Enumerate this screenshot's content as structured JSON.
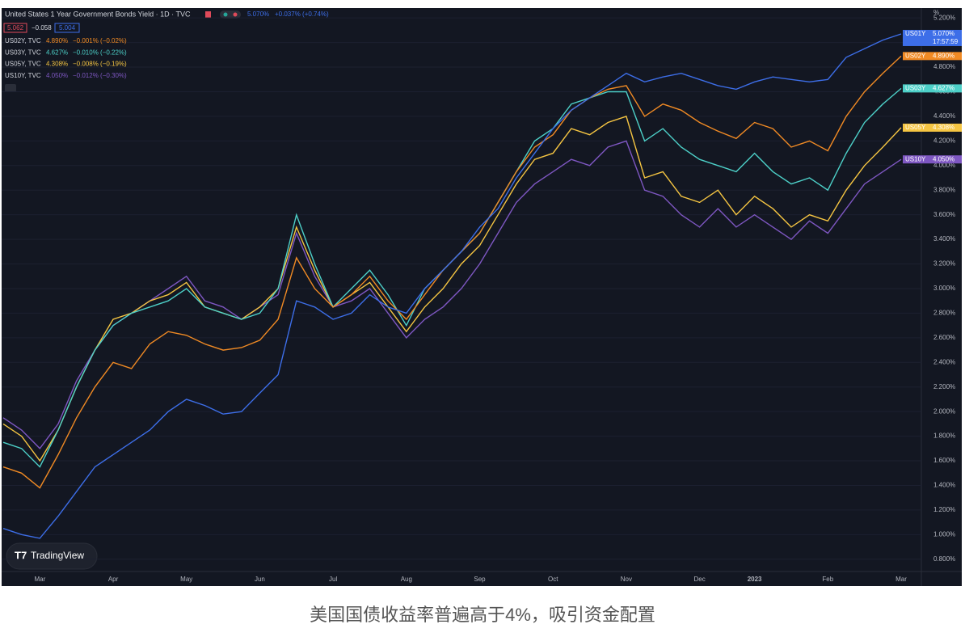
{
  "chart_data": {
    "type": "line",
    "header": {
      "title": "United States 1 Year Government Bonds Yield · 1D · TVC",
      "price": "5.070%",
      "change": "+0.037% (+0.74%)",
      "bid": "5.062",
      "spread": "−0.058",
      "ask": "5.004"
    },
    "unit": "%",
    "brand": "TradingView",
    "caption": "美国国债收益率普遍高于4%，吸引资金配置",
    "categories": [
      null,
      null,
      "Mar",
      null,
      null,
      null,
      "Apr",
      null,
      null,
      null,
      "May",
      null,
      null,
      null,
      "Jun",
      null,
      null,
      null,
      "Jul",
      null,
      null,
      null,
      "Aug",
      null,
      null,
      null,
      "Sep",
      null,
      null,
      null,
      "Oct",
      null,
      null,
      null,
      "Nov",
      null,
      null,
      null,
      "Dec",
      null,
      null,
      "2023",
      null,
      null,
      null,
      "Feb",
      null,
      null,
      null,
      "Mar"
    ],
    "series": [
      {
        "name": "US01Y",
        "color": "#3d6ee8",
        "last_label": "5.070%",
        "time": "17:57:59",
        "values": [
          1.05,
          1.0,
          0.97,
          1.15,
          1.35,
          1.55,
          1.65,
          1.75,
          1.85,
          2.0,
          2.1,
          2.05,
          1.98,
          2.0,
          2.15,
          2.3,
          2.9,
          2.85,
          2.75,
          2.8,
          2.95,
          2.85,
          2.8,
          3.0,
          3.15,
          3.3,
          3.5,
          3.65,
          3.9,
          4.1,
          4.3,
          4.45,
          4.55,
          4.65,
          4.75,
          4.68,
          4.72,
          4.75,
          4.7,
          4.65,
          4.62,
          4.68,
          4.72,
          4.7,
          4.68,
          4.7,
          4.88,
          4.95,
          5.02,
          5.07
        ]
      },
      {
        "name": "US02Y",
        "legend": "US02Y, TVC",
        "color": "#f08a24",
        "last_label": "4.890%",
        "change": "−0.001% (−0.02%)",
        "values": [
          1.55,
          1.5,
          1.38,
          1.65,
          1.95,
          2.2,
          2.4,
          2.35,
          2.55,
          2.65,
          2.62,
          2.55,
          2.5,
          2.52,
          2.58,
          2.75,
          3.25,
          3.0,
          2.85,
          2.95,
          3.1,
          2.9,
          2.75,
          2.95,
          3.15,
          3.3,
          3.45,
          3.7,
          3.95,
          4.15,
          4.25,
          4.45,
          4.55,
          4.62,
          4.65,
          4.4,
          4.5,
          4.45,
          4.35,
          4.28,
          4.22,
          4.35,
          4.3,
          4.15,
          4.2,
          4.12,
          4.4,
          4.6,
          4.75,
          4.89
        ]
      },
      {
        "name": "US03Y",
        "legend": "US03Y, TVC",
        "color": "#4dd0c8",
        "last_label": "4.627%",
        "change": "−0.010% (−0.22%)",
        "values": [
          1.75,
          1.7,
          1.55,
          1.85,
          2.2,
          2.5,
          2.7,
          2.8,
          2.85,
          2.9,
          3.0,
          2.85,
          2.8,
          2.75,
          2.8,
          3.0,
          3.6,
          3.2,
          2.85,
          3.0,
          3.15,
          2.95,
          2.7,
          3.0,
          3.15,
          3.3,
          3.45,
          3.7,
          3.95,
          4.2,
          4.3,
          4.5,
          4.55,
          4.6,
          4.6,
          4.2,
          4.3,
          4.15,
          4.05,
          4.0,
          3.95,
          4.1,
          3.95,
          3.85,
          3.9,
          3.8,
          4.1,
          4.35,
          4.5,
          4.627
        ]
      },
      {
        "name": "US05Y",
        "legend": "US05Y, TVC",
        "color": "#f5c542",
        "last_label": "4.308%",
        "change": "−0.008% (−0.19%)",
        "values": [
          1.9,
          1.8,
          1.6,
          1.85,
          2.2,
          2.5,
          2.75,
          2.8,
          2.9,
          2.95,
          3.05,
          2.85,
          2.8,
          2.75,
          2.85,
          3.0,
          3.5,
          3.15,
          2.85,
          2.95,
          3.05,
          2.85,
          2.65,
          2.85,
          3.0,
          3.2,
          3.35,
          3.6,
          3.85,
          4.05,
          4.1,
          4.3,
          4.25,
          4.35,
          4.4,
          3.9,
          3.95,
          3.75,
          3.7,
          3.8,
          3.6,
          3.75,
          3.65,
          3.5,
          3.6,
          3.55,
          3.8,
          4.0,
          4.15,
          4.308
        ]
      },
      {
        "name": "US10Y",
        "legend": "US10Y, TVC",
        "color": "#7e57c2",
        "last_label": "4.050%",
        "change": "−0.012% (−0.30%)",
        "values": [
          1.95,
          1.85,
          1.7,
          1.9,
          2.25,
          2.5,
          2.7,
          2.8,
          2.9,
          3.0,
          3.1,
          2.9,
          2.85,
          2.75,
          2.85,
          2.95,
          3.45,
          3.1,
          2.85,
          2.9,
          3.0,
          2.8,
          2.6,
          2.75,
          2.85,
          3.0,
          3.2,
          3.45,
          3.7,
          3.85,
          3.95,
          4.05,
          4.0,
          4.15,
          4.2,
          3.8,
          3.75,
          3.6,
          3.5,
          3.65,
          3.5,
          3.6,
          3.5,
          3.4,
          3.55,
          3.45,
          3.65,
          3.85,
          3.95,
          4.05
        ]
      }
    ],
    "ylim": [
      0.7,
      5.28
    ],
    "yticks": [
      {
        "value": 0.8,
        "label": "0.800%"
      },
      {
        "value": 1.0,
        "label": "1.000%"
      },
      {
        "value": 1.2,
        "label": "1.200%"
      },
      {
        "value": 1.4,
        "label": "1.400%"
      },
      {
        "value": 1.6,
        "label": "1.600%"
      },
      {
        "value": 1.8,
        "label": "1.800%"
      },
      {
        "value": 2.0,
        "label": "2.000%"
      },
      {
        "value": 2.2,
        "label": "2.200%"
      },
      {
        "value": 2.4,
        "label": "2.400%"
      },
      {
        "value": 2.6,
        "label": "2.600%"
      },
      {
        "value": 2.8,
        "label": "2.800%"
      },
      {
        "value": 3.0,
        "label": "3.000%"
      },
      {
        "value": 3.2,
        "label": "3.200%"
      },
      {
        "value": 3.4,
        "label": "3.400%"
      },
      {
        "value": 3.6,
        "label": "3.600%"
      },
      {
        "value": 3.8,
        "label": "3.800%"
      },
      {
        "value": 4.0,
        "label": "4.000%"
      },
      {
        "value": 4.2,
        "label": "4.200%"
      },
      {
        "value": 4.4,
        "label": "4.400%"
      },
      {
        "value": 4.6,
        "label": "4.600%"
      },
      {
        "value": 4.8,
        "label": "4.800%"
      },
      {
        "value": 5.0,
        "label": "5.000%"
      },
      {
        "value": 5.2,
        "label": "5.200%"
      }
    ],
    "grid": true
  }
}
